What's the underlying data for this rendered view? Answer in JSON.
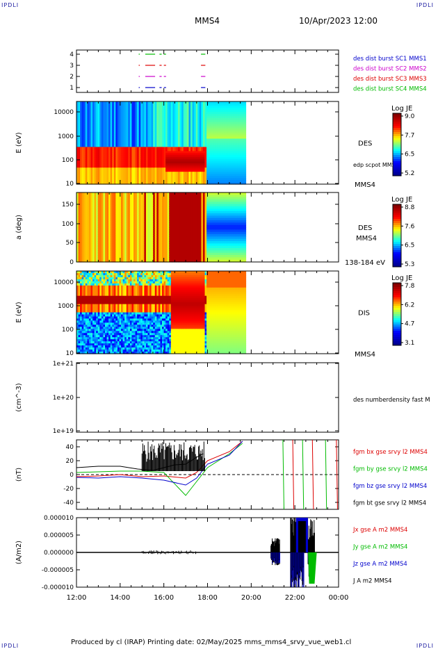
{
  "header": {
    "corner_tag": "IPDLI",
    "spacecraft": "MMS4",
    "datetime": "10/Apr/2023 12:00"
  },
  "footer": {
    "text": "Produced by cl (IRAP)   Printing date: 02/May/2025   mms_mms4_srvy_vue_web1.cl"
  },
  "time_axis": {
    "tick_labels": [
      "12:00",
      "14:00",
      "16:00",
      "18:00",
      "20:00",
      "22:00",
      "00:00"
    ],
    "hours": [
      12,
      14,
      16,
      18,
      20,
      22,
      24
    ]
  },
  "colors": {
    "mms1": "#0000cc",
    "mms2": "#cc00cc",
    "mms3": "#dd0000",
    "mms4": "#00bb00",
    "bt": "#000000"
  },
  "chart_data": [
    {
      "type": "scatter",
      "panel": "burst-availability",
      "yticks": [
        "1",
        "2",
        "3",
        "4"
      ],
      "legend": [
        "des dist burst SC1 MMS1",
        "des dist burst SC2 MMS2",
        "des dist burst SC3 MMS3",
        "des dist burst SC4 MMS4"
      ],
      "segments_hours": [
        [
          14.85,
          14.9
        ],
        [
          15.15,
          15.6
        ],
        [
          15.8,
          15.9
        ],
        [
          16.0,
          16.1
        ],
        [
          17.7,
          17.9
        ]
      ]
    },
    {
      "type": "heatmap",
      "panel": "des-energy-spectrogram",
      "ylabel": "E (eV)",
      "yticks": [
        "10",
        "100",
        "1000",
        "10000"
      ],
      "label": "DES",
      "sublabel": "edp scpot MMS4",
      "right_tag": "MMS4",
      "colorbar_title": "Log JE",
      "colorbar_ticks": [
        "9.0",
        "7.7",
        "6.5",
        "5.2"
      ],
      "data_end_hour": 19.75
    },
    {
      "type": "heatmap",
      "panel": "des-pitch-angle",
      "ylabel": "a (deg)",
      "yticks": [
        "0",
        "50",
        "100",
        "150"
      ],
      "label": "DES",
      "sublabel": "MMS4",
      "right_tag": "138-184 eV",
      "colorbar_title": "Log JE",
      "colorbar_ticks": [
        "8.8",
        "7.6",
        "6.5",
        "5.3"
      ],
      "data_end_hour": 19.75
    },
    {
      "type": "heatmap",
      "panel": "dis-energy-spectrogram",
      "ylabel": "E (eV)",
      "yticks": [
        "10",
        "100",
        "1000",
        "10000"
      ],
      "label": "DIS",
      "right_tag": "MMS4",
      "colorbar_title": "Log JE",
      "colorbar_ticks": [
        "7.8",
        "6.2",
        "4.7",
        "3.1"
      ],
      "data_end_hour": 19.75
    },
    {
      "type": "line",
      "panel": "density",
      "ylabel": "(cm^-3)",
      "yticks": [
        "1e+19",
        "1e+20",
        "1e+21"
      ],
      "legend": [
        "des numberdensity fast M"
      ],
      "series": []
    },
    {
      "type": "line",
      "panel": "magnetic-field",
      "ylabel": "(nT)",
      "yticks": [
        "-40",
        "-20",
        "0",
        "20",
        "40"
      ],
      "ylim": [
        -50,
        50
      ],
      "legend": [
        "fgm bx gse srvy l2 MMS4",
        "fgm by gse srvy l2 MMS4",
        "fgm bz gse srvy l2 MMS4",
        "fgm bt gse srvy l2 MMS4"
      ],
      "series": [
        {
          "name": "fgm bt gse srvy l2 MMS4",
          "x": [
            12.0,
            13.0,
            14.0,
            14.8,
            15.5,
            16.0,
            16.5,
            17.0,
            17.5,
            17.8
          ],
          "y": [
            10,
            12,
            12,
            8,
            6,
            10,
            14,
            15,
            25,
            30
          ]
        },
        {
          "name": "fgm bx gse srvy l2 MMS4",
          "x": [
            12.0,
            13.0,
            14.0,
            15.0,
            16.0,
            17.0,
            17.5,
            18.0,
            19.0,
            19.6
          ],
          "y": [
            -3,
            -2,
            0,
            -3,
            -2,
            -5,
            3,
            20,
            33,
            48
          ]
        },
        {
          "name": "fgm by gse srvy l2 MMS4",
          "x": [
            12.0,
            13.0,
            14.0,
            15.0,
            16.0,
            17.0,
            17.5,
            18.0,
            19.0,
            19.6
          ],
          "y": [
            3,
            4,
            5,
            5,
            3,
            -30,
            -10,
            10,
            30,
            45
          ]
        },
        {
          "name": "fgm bz gse srvy l2 MMS4",
          "x": [
            12.0,
            13.0,
            14.0,
            15.0,
            16.0,
            17.0,
            17.5,
            18.0,
            19.0,
            19.6
          ],
          "y": [
            -4,
            -5,
            -3,
            -5,
            -8,
            -15,
            -5,
            15,
            28,
            48
          ]
        }
      ]
    },
    {
      "type": "line",
      "panel": "current-density",
      "ylabel": "(A/m2)",
      "yticks": [
        "-0.000010",
        "-0.000005",
        "0.000000",
        "0.000005",
        "0.000010"
      ],
      "ylim": [
        -1e-05,
        1e-05
      ],
      "legend": [
        "Jx gse A m2 MMS4",
        "Jy gse A m2 MMS4",
        "Jz gse A m2 MMS4",
        "J A m2 MMS4"
      ],
      "series": []
    }
  ]
}
